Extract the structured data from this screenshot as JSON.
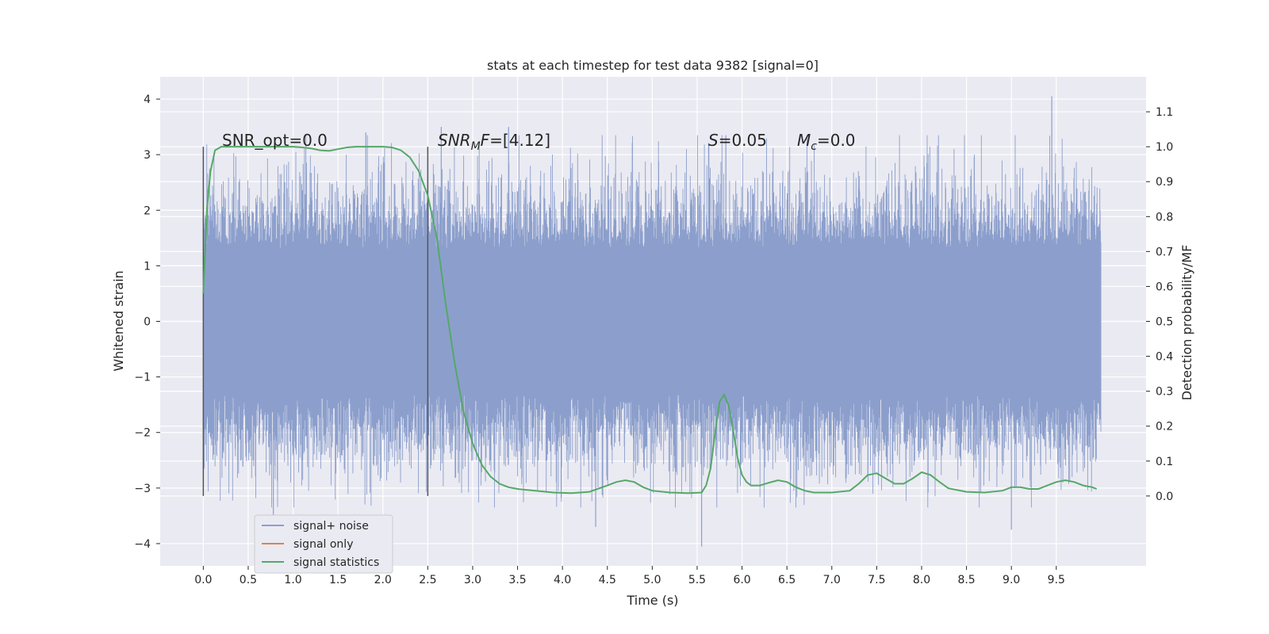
{
  "chart_data": {
    "type": "line",
    "title": "stats at each timestep for test data 9382 [signal=0]",
    "xlabel": "Time (s)",
    "ylabel_left": "Whitened strain",
    "ylabel_right": "Detection probability/MF",
    "xlim": [
      -0.48,
      10.5
    ],
    "ylim_left": [
      -4.4,
      4.4
    ],
    "ylim_right": [
      -0.2,
      1.2
    ],
    "x_ticks": [
      0.0,
      0.5,
      1.0,
      1.5,
      2.0,
      2.5,
      3.0,
      3.5,
      4.0,
      4.5,
      5.0,
      5.5,
      6.0,
      6.5,
      7.0,
      7.5,
      8.0,
      8.5,
      9.0,
      9.5
    ],
    "x_tick_labels": [
      "0.0",
      "0.5",
      "1.0",
      "1.5",
      "2.0",
      "2.5",
      "3.0",
      "3.5",
      "4.0",
      "4.5",
      "5.0",
      "5.5",
      "6.0",
      "6.5",
      "7.0",
      "7.5",
      "8.0",
      "8.5",
      "9.0",
      "9.5"
    ],
    "y_left_ticks": [
      4,
      3,
      2,
      1,
      0,
      -1,
      -2,
      -3,
      -4
    ],
    "y_left_tick_labels": [
      "4",
      "3",
      "2",
      "1",
      "0",
      "−1",
      "−2",
      "−3",
      "−4"
    ],
    "y_right_ticks": [
      1.1,
      1.0,
      0.9,
      0.8,
      0.7,
      0.6,
      0.5,
      0.4,
      0.3,
      0.2,
      0.1,
      0.0
    ],
    "y_right_tick_labels": [
      "1.1",
      "1.0",
      "0.9",
      "0.8",
      "0.7",
      "0.6",
      "0.5",
      "0.4",
      "0.3",
      "0.2",
      "0.1",
      "0.0"
    ],
    "grid": true,
    "legend_position": "lower-left",
    "series": [
      {
        "name": "signal+ noise",
        "color": "#8c9fcc",
        "axis": "left",
        "kind": "noise",
        "x_range": [
          0.0,
          10.0
        ],
        "core_amplitude": 1.3,
        "typical_peak": 2.5,
        "max_value": 4.05,
        "min_value": -4.05,
        "spikes": [
          {
            "x": 9.45,
            "y": 4.05
          },
          {
            "x": 5.55,
            "y": -4.05
          },
          {
            "x": 0.78,
            "y": -3.6
          },
          {
            "x": 9.0,
            "y": -3.75
          },
          {
            "x": 4.37,
            "y": -3.7
          },
          {
            "x": 1.81,
            "y": 3.4
          },
          {
            "x": 2.65,
            "y": 3.5
          },
          {
            "x": 3.4,
            "y": 3.5
          },
          {
            "x": 5.82,
            "y": 3.35
          }
        ]
      },
      {
        "name": "signal only",
        "color": "#dd8452",
        "axis": "left",
        "values": []
      },
      {
        "name": "signal statistics",
        "color": "#55a868",
        "axis": "right",
        "x": [
          0.0,
          0.04,
          0.08,
          0.13,
          0.2,
          0.3,
          0.5,
          0.8,
          1.0,
          1.1,
          1.2,
          1.3,
          1.4,
          1.5,
          1.6,
          1.7,
          1.8,
          2.0,
          2.1,
          2.2,
          2.3,
          2.4,
          2.5,
          2.6,
          2.7,
          2.8,
          2.9,
          3.0,
          3.1,
          3.2,
          3.3,
          3.4,
          3.5,
          3.7,
          3.9,
          4.1,
          4.3,
          4.5,
          4.6,
          4.7,
          4.8,
          4.9,
          5.0,
          5.2,
          5.4,
          5.55,
          5.6,
          5.65,
          5.7,
          5.75,
          5.8,
          5.85,
          5.9,
          5.95,
          6.0,
          6.05,
          6.1,
          6.2,
          6.3,
          6.4,
          6.5,
          6.6,
          6.7,
          6.8,
          7.0,
          7.2,
          7.3,
          7.4,
          7.5,
          7.6,
          7.7,
          7.8,
          7.9,
          8.0,
          8.1,
          8.2,
          8.3,
          8.5,
          8.7,
          8.9,
          9.0,
          9.1,
          9.2,
          9.3,
          9.4,
          9.5,
          9.6,
          9.7,
          9.8,
          9.9,
          9.95
        ],
        "values": [
          0.58,
          0.82,
          0.93,
          0.99,
          1.0,
          1.0,
          1.0,
          1.0,
          1.0,
          0.998,
          0.995,
          0.99,
          0.988,
          0.993,
          0.998,
          1.0,
          1.0,
          1.0,
          0.998,
          0.99,
          0.97,
          0.93,
          0.86,
          0.74,
          0.55,
          0.38,
          0.24,
          0.15,
          0.09,
          0.055,
          0.035,
          0.025,
          0.02,
          0.015,
          0.01,
          0.008,
          0.012,
          0.03,
          0.04,
          0.045,
          0.04,
          0.025,
          0.015,
          0.01,
          0.008,
          0.01,
          0.03,
          0.08,
          0.18,
          0.27,
          0.29,
          0.26,
          0.19,
          0.11,
          0.06,
          0.04,
          0.03,
          0.03,
          0.038,
          0.045,
          0.04,
          0.025,
          0.015,
          0.01,
          0.01,
          0.015,
          0.035,
          0.06,
          0.065,
          0.05,
          0.035,
          0.035,
          0.05,
          0.068,
          0.06,
          0.04,
          0.022,
          0.012,
          0.01,
          0.015,
          0.025,
          0.025,
          0.02,
          0.02,
          0.03,
          0.04,
          0.045,
          0.04,
          0.03,
          0.025,
          0.02
        ]
      }
    ],
    "vlines": [
      0.0,
      2.5
    ],
    "annotations": {
      "snr_opt": "SNR_opt=0.0",
      "snr_mf_base": "SNR",
      "snr_mf_sub": "M",
      "snr_mf_italic": "F",
      "snr_mf_value": "=[4.12]",
      "s_label": "S",
      "s_value": "=0.05",
      "mc_label": "M",
      "mc_sub": "c",
      "mc_value": "=0.0"
    }
  }
}
